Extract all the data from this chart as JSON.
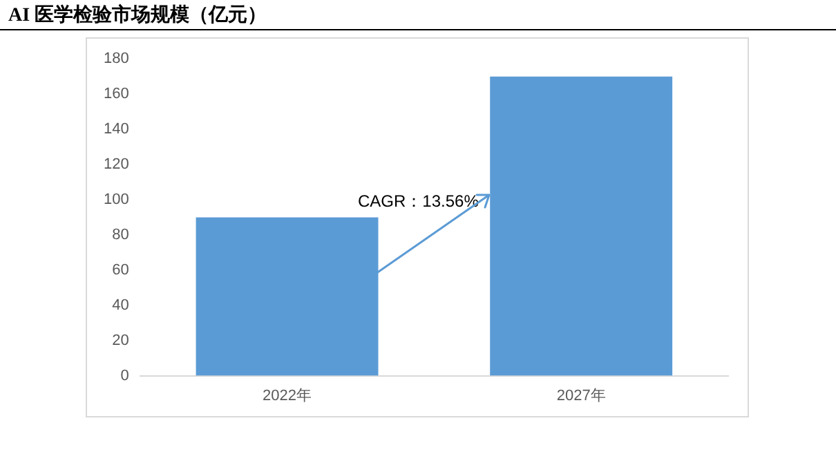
{
  "chart_data": {
    "type": "bar",
    "title": "AI 医学检验市场规模（亿元）",
    "categories": [
      "2022年",
      "2027年"
    ],
    "values": [
      90,
      170
    ],
    "color": "#5b9bd5",
    "ylim": [
      0,
      180
    ],
    "yticks": [
      0,
      20,
      40,
      60,
      80,
      100,
      120,
      140,
      160,
      180
    ],
    "grid": false,
    "annotations": [
      "CAGR：13.56%"
    ]
  }
}
